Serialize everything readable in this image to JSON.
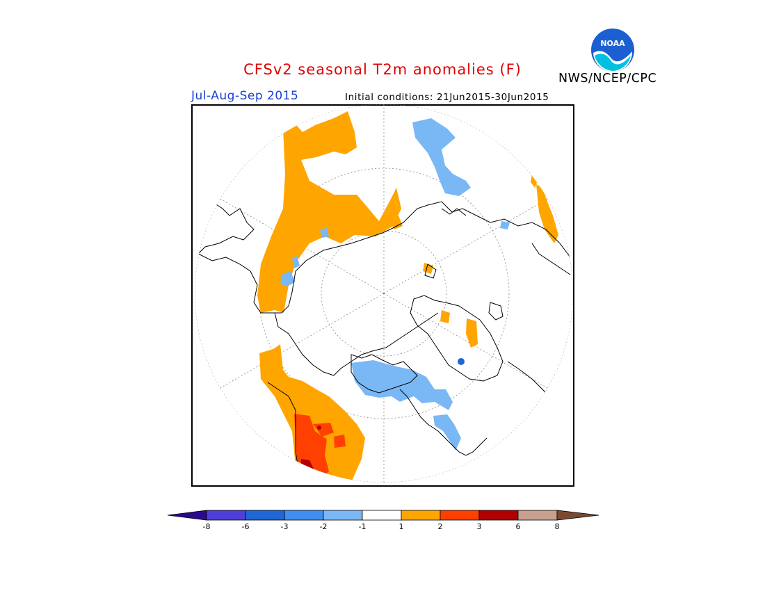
{
  "header": {
    "title": "CFSv2 seasonal T2m anomalies (F)",
    "period": "Jul-Aug-Sep 2015",
    "initial_conditions": "Initial conditions: 21Jun2015-30Jun2015",
    "agency": "NWS/NCEP/CPC",
    "logo_text": "NOAA"
  },
  "map": {
    "projection": "north polar stereographic",
    "gridlines": "dotted",
    "land_outline_color": "#000000"
  },
  "legend": {
    "tick_labels": [
      "-8",
      "-6",
      "-3",
      "-2",
      "-1",
      "1",
      "2",
      "3",
      "6",
      "8"
    ],
    "colors": [
      "#2a0a8c",
      "#4d3fd8",
      "#1f66d6",
      "#3f8ef0",
      "#7ab8f5",
      "#ffffff",
      "#ffa500",
      "#ff4000",
      "#b00000",
      "#c8a090",
      "#7a4a30"
    ]
  }
}
